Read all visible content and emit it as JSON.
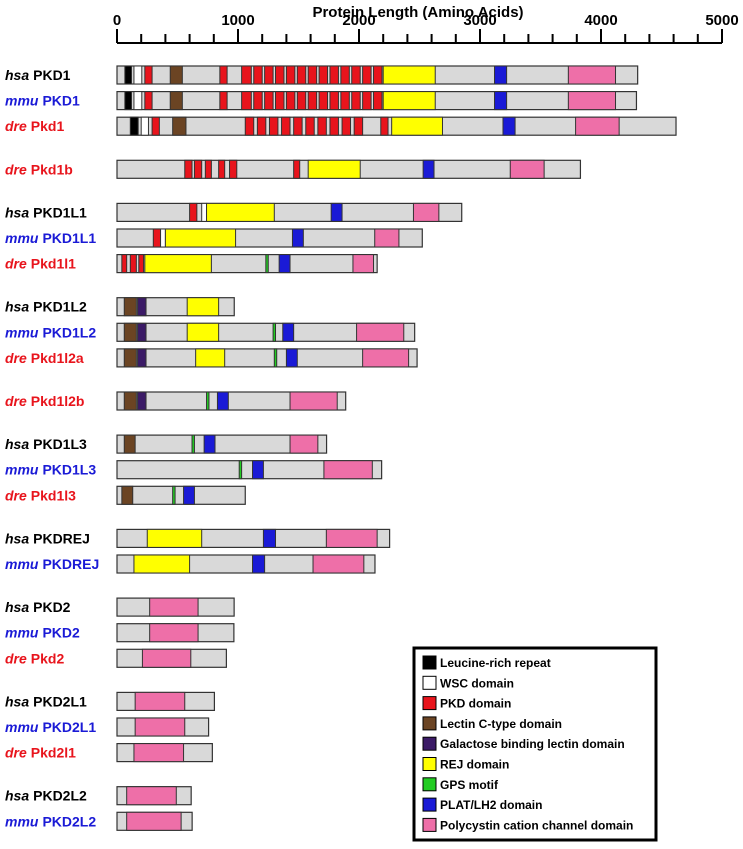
{
  "axis": {
    "title": "Protein Length (Amino Acids)",
    "min": 0,
    "max": 5000,
    "major_step": 1000,
    "minor_step": 200
  },
  "colors": {
    "background": "#d9d9d9",
    "outline": "#333333",
    "hsa": "#000000",
    "mmu": "#1a1ad6",
    "dre": "#e8141c"
  },
  "domain_types": [
    {
      "key": "lrr",
      "label": "Leucine-rich repeat",
      "color": "#000000"
    },
    {
      "key": "wsc",
      "label": "WSC domain",
      "color": "#ffffff"
    },
    {
      "key": "pkd",
      "label": "PKD domain",
      "color": "#e8141c"
    },
    {
      "key": "lec",
      "label": "Lectin C-type domain",
      "color": "#6b4423"
    },
    {
      "key": "gal",
      "label": "Galactose binding lectin domain",
      "color": "#3b1a66"
    },
    {
      "key": "rej",
      "label": "REJ domain",
      "color": "#ffff00"
    },
    {
      "key": "gps",
      "label": "GPS motif",
      "color": "#22cc22"
    },
    {
      "key": "plat",
      "label": "PLAT/LH2 domain",
      "color": "#1a1ad6"
    },
    {
      "key": "pcc",
      "label": "Polycystin cation channel domain",
      "color": "#ee6fa8"
    }
  ],
  "proteins": [
    {
      "species": "hsa",
      "name": "PKD1",
      "length": 4303,
      "domains": [
        [
          "lrr",
          65,
          120
        ],
        [
          "wsc",
          140,
          205
        ],
        [
          "pkd",
          230,
          290
        ],
        [
          "lec",
          440,
          540
        ],
        [
          "pkd",
          850,
          910
        ],
        [
          "pkd",
          1030,
          1110
        ],
        [
          "pkd",
          1130,
          1200
        ],
        [
          "pkd",
          1220,
          1290
        ],
        [
          "pkd",
          1310,
          1380
        ],
        [
          "pkd",
          1400,
          1470
        ],
        [
          "pkd",
          1490,
          1560
        ],
        [
          "pkd",
          1580,
          1650
        ],
        [
          "pkd",
          1670,
          1740
        ],
        [
          "pkd",
          1760,
          1830
        ],
        [
          "pkd",
          1850,
          1920
        ],
        [
          "pkd",
          1940,
          2010
        ],
        [
          "pkd",
          2030,
          2100
        ],
        [
          "pkd",
          2120,
          2190
        ],
        [
          "rej",
          2200,
          2630
        ],
        [
          "plat",
          3120,
          3220
        ],
        [
          "pcc",
          3730,
          4120
        ]
      ]
    },
    {
      "species": "mmu",
      "name": "PKD1",
      "length": 4293,
      "domains": [
        [
          "lrr",
          65,
          120
        ],
        [
          "wsc",
          140,
          205
        ],
        [
          "pkd",
          230,
          290
        ],
        [
          "lec",
          440,
          540
        ],
        [
          "pkd",
          850,
          910
        ],
        [
          "pkd",
          1030,
          1110
        ],
        [
          "pkd",
          1130,
          1200
        ],
        [
          "pkd",
          1220,
          1290
        ],
        [
          "pkd",
          1310,
          1380
        ],
        [
          "pkd",
          1400,
          1470
        ],
        [
          "pkd",
          1490,
          1560
        ],
        [
          "pkd",
          1580,
          1650
        ],
        [
          "pkd",
          1670,
          1740
        ],
        [
          "pkd",
          1760,
          1830
        ],
        [
          "pkd",
          1850,
          1920
        ],
        [
          "pkd",
          1940,
          2010
        ],
        [
          "pkd",
          2030,
          2100
        ],
        [
          "pkd",
          2120,
          2190
        ],
        [
          "rej",
          2200,
          2630
        ],
        [
          "plat",
          3120,
          3220
        ],
        [
          "pcc",
          3730,
          4120
        ]
      ]
    },
    {
      "species": "dre",
      "name": "Pkd1",
      "length": 4620,
      "domains": [
        [
          "lrr",
          110,
          175
        ],
        [
          "wsc",
          200,
          260
        ],
        [
          "pkd",
          290,
          350
        ],
        [
          "lec",
          460,
          570
        ],
        [
          "pkd",
          1060,
          1130
        ],
        [
          "pkd",
          1160,
          1230
        ],
        [
          "pkd",
          1260,
          1330
        ],
        [
          "pkd",
          1360,
          1430
        ],
        [
          "pkd",
          1460,
          1530
        ],
        [
          "pkd",
          1560,
          1630
        ],
        [
          "pkd",
          1660,
          1730
        ],
        [
          "pkd",
          1760,
          1830
        ],
        [
          "pkd",
          1860,
          1930
        ],
        [
          "pkd",
          1960,
          2030
        ],
        [
          "pkd",
          2180,
          2240
        ],
        [
          "rej",
          2270,
          2690
        ],
        [
          "plat",
          3190,
          3290
        ],
        [
          "pcc",
          3790,
          4150
        ]
      ]
    },
    {
      "species": "dre",
      "name": "Pkd1b",
      "length": 3830,
      "gap_before": true,
      "domains": [
        [
          "pkd",
          560,
          620
        ],
        [
          "pkd",
          640,
          700
        ],
        [
          "pkd",
          730,
          780
        ],
        [
          "pkd",
          840,
          890
        ],
        [
          "pkd",
          930,
          990
        ],
        [
          "pkd",
          1460,
          1510
        ],
        [
          "rej",
          1580,
          2010
        ],
        [
          "plat",
          2530,
          2620
        ],
        [
          "pcc",
          3250,
          3530
        ]
      ]
    },
    {
      "species": "hsa",
      "name": "PKD1L1",
      "length": 2849,
      "gap_before": true,
      "domains": [
        [
          "pkd",
          600,
          660
        ],
        [
          "wsc",
          700,
          740
        ],
        [
          "rej",
          740,
          1300
        ],
        [
          "plat",
          1770,
          1860
        ],
        [
          "pcc",
          2450,
          2660
        ]
      ]
    },
    {
      "species": "mmu",
      "name": "PKD1L1",
      "length": 2523,
      "domains": [
        [
          "pkd",
          300,
          360
        ],
        [
          "wsc",
          360,
          400
        ],
        [
          "rej",
          400,
          980
        ],
        [
          "plat",
          1450,
          1540
        ],
        [
          "pcc",
          2130,
          2330
        ]
      ]
    },
    {
      "species": "dre",
      "name": "Pkd1l1",
      "length": 2150,
      "domains": [
        [
          "pkd",
          40,
          80
        ],
        [
          "pkd",
          110,
          160
        ],
        [
          "pkd",
          180,
          220
        ],
        [
          "rej",
          230,
          780
        ],
        [
          "gps",
          1230,
          1250
        ],
        [
          "plat",
          1340,
          1430
        ],
        [
          "pcc",
          1950,
          2120
        ]
      ]
    },
    {
      "species": "hsa",
      "name": "PKD1L2",
      "length": 969,
      "gap_before": true,
      "domains": [
        [
          "lec",
          60,
          160
        ],
        [
          "gal",
          170,
          240
        ],
        [
          "rej",
          580,
          840
        ]
      ]
    },
    {
      "species": "mmu",
      "name": "PKD1L2",
      "length": 2460,
      "domains": [
        [
          "lec",
          60,
          160
        ],
        [
          "gal",
          170,
          240
        ],
        [
          "rej",
          580,
          840
        ],
        [
          "gps",
          1290,
          1310
        ],
        [
          "plat",
          1370,
          1460
        ],
        [
          "pcc",
          1980,
          2370
        ]
      ]
    },
    {
      "species": "dre",
      "name": "Pkd1l2a",
      "length": 2480,
      "domains": [
        [
          "lec",
          60,
          160
        ],
        [
          "gal",
          170,
          240
        ],
        [
          "rej",
          650,
          890
        ],
        [
          "gps",
          1300,
          1320
        ],
        [
          "plat",
          1400,
          1490
        ],
        [
          "pcc",
          2030,
          2410
        ]
      ]
    },
    {
      "species": "dre",
      "name": "Pkd1l2b",
      "length": 1890,
      "gap_before": true,
      "domains": [
        [
          "lec",
          60,
          160
        ],
        [
          "gal",
          170,
          240
        ],
        [
          "gps",
          740,
          760
        ],
        [
          "plat",
          830,
          920
        ],
        [
          "pcc",
          1430,
          1820
        ]
      ]
    },
    {
      "species": "hsa",
      "name": "PKD1L3",
      "length": 1732,
      "gap_before": true,
      "domains": [
        [
          "lec",
          60,
          150
        ],
        [
          "gps",
          620,
          640
        ],
        [
          "plat",
          720,
          810
        ],
        [
          "pcc",
          1430,
          1660
        ]
      ]
    },
    {
      "species": "mmu",
      "name": "PKD1L3",
      "length": 2187,
      "domains": [
        [
          "gps",
          1010,
          1030
        ],
        [
          "plat",
          1120,
          1210
        ],
        [
          "pcc",
          1710,
          2110
        ]
      ]
    },
    {
      "species": "dre",
      "name": "Pkd1l3",
      "length": 1060,
      "domains": [
        [
          "lec",
          40,
          130
        ],
        [
          "gps",
          460,
          480
        ],
        [
          "plat",
          550,
          640
        ]
      ]
    },
    {
      "species": "hsa",
      "name": "PKDREJ",
      "length": 2253,
      "gap_before": true,
      "domains": [
        [
          "rej",
          250,
          700
        ],
        [
          "plat",
          1210,
          1310
        ],
        [
          "pcc",
          1730,
          2150
        ]
      ]
    },
    {
      "species": "mmu",
      "name": "PKDREJ",
      "length": 2132,
      "domains": [
        [
          "rej",
          140,
          600
        ],
        [
          "plat",
          1120,
          1220
        ],
        [
          "pcc",
          1620,
          2040
        ]
      ]
    },
    {
      "species": "hsa",
      "name": "PKD2",
      "length": 968,
      "gap_before": true,
      "domains": [
        [
          "pcc",
          270,
          670
        ]
      ]
    },
    {
      "species": "mmu",
      "name": "PKD2",
      "length": 966,
      "domains": [
        [
          "pcc",
          270,
          670
        ]
      ]
    },
    {
      "species": "dre",
      "name": "Pkd2",
      "length": 904,
      "domains": [
        [
          "pcc",
          210,
          610
        ]
      ]
    },
    {
      "species": "hsa",
      "name": "PKD2L1",
      "length": 805,
      "gap_before": true,
      "domains": [
        [
          "pcc",
          150,
          560
        ]
      ]
    },
    {
      "species": "mmu",
      "name": "PKD2L1",
      "length": 757,
      "domains": [
        [
          "pcc",
          150,
          560
        ]
      ]
    },
    {
      "species": "dre",
      "name": "Pkd2l1",
      "length": 788,
      "domains": [
        [
          "pcc",
          140,
          550
        ]
      ]
    },
    {
      "species": "hsa",
      "name": "PKD2L2",
      "length": 613,
      "gap_before": true,
      "domains": [
        [
          "pcc",
          80,
          490
        ]
      ]
    },
    {
      "species": "mmu",
      "name": "PKD2L2",
      "length": 621,
      "domains": [
        [
          "pcc",
          80,
          530
        ]
      ]
    }
  ]
}
